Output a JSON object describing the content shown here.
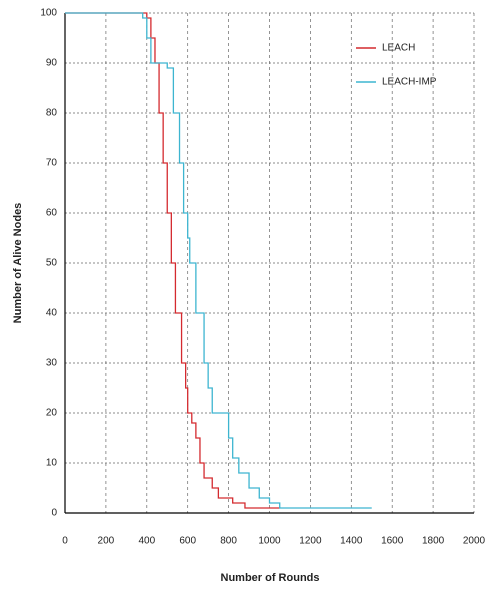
{
  "chart_data": {
    "type": "line",
    "x_label": "Number of Rounds",
    "y_label": "Number of Alive Nodes",
    "xlim": [
      0,
      2000
    ],
    "ylim": [
      0,
      100
    ],
    "xticks": [
      0,
      200,
      400,
      600,
      800,
      1000,
      1200,
      1400,
      1600,
      1800,
      2000
    ],
    "yticks": [
      0,
      10,
      20,
      30,
      40,
      50,
      60,
      70,
      80,
      90,
      100
    ],
    "grid": true,
    "legend": "upper right",
    "series": [
      {
        "name": "LEACH",
        "color": "#d42a2f",
        "x": [
          0,
          390,
          400,
          420,
          440,
          460,
          480,
          500,
          520,
          540,
          570,
          590,
          600,
          620,
          640,
          660,
          680,
          720,
          750,
          820,
          880,
          1000,
          1050
        ],
        "values": [
          100,
          100,
          99,
          95,
          90,
          80,
          70,
          60,
          50,
          40,
          30,
          25,
          20,
          18,
          15,
          10,
          7,
          5,
          3,
          2,
          1,
          1,
          1
        ]
      },
      {
        "name": "LEACH-IMP",
        "color": "#3db5d0",
        "x": [
          0,
          360,
          380,
          400,
          420,
          500,
          530,
          560,
          580,
          600,
          610,
          640,
          680,
          700,
          720,
          790,
          800,
          820,
          850,
          900,
          950,
          1000,
          1050,
          1500
        ],
        "values": [
          100,
          100,
          99,
          95,
          90,
          89,
          80,
          70,
          60,
          55,
          50,
          40,
          30,
          25,
          20,
          20,
          15,
          11,
          8,
          5,
          3,
          2,
          1,
          1
        ]
      }
    ]
  }
}
